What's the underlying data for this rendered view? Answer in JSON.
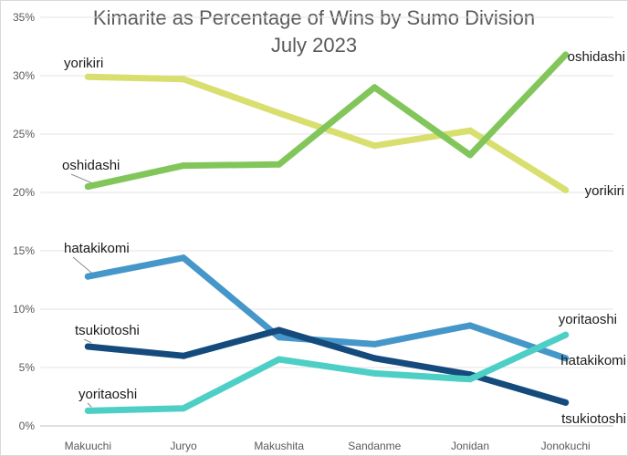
{
  "chart_data": {
    "type": "line",
    "title": "Kimarite as Percentage of Wins by Sumo Division",
    "subtitle": "July 2023",
    "xlabel": "",
    "ylabel": "",
    "categories": [
      "Makuuchi",
      "Juryo",
      "Makushita",
      "Sandanme",
      "Jonidan",
      "Jonokuchi"
    ],
    "ylim": [
      0,
      35
    ],
    "yticks": [
      0,
      5,
      10,
      15,
      20,
      25,
      30,
      35
    ],
    "ytick_labels": [
      "0%",
      "5%",
      "10%",
      "15%",
      "20%",
      "25%",
      "30%",
      "35%"
    ],
    "grid": true,
    "legend": "none",
    "series": [
      {
        "name": "yorikiri",
        "color": "#d9df6f",
        "values": [
          29.9,
          29.7,
          26.8,
          24.0,
          25.3,
          20.2
        ]
      },
      {
        "name": "oshidashi",
        "color": "#82c65b",
        "values": [
          20.5,
          22.3,
          22.4,
          29.0,
          23.2,
          31.8
        ]
      },
      {
        "name": "hatakikomi",
        "color": "#4596c9",
        "values": [
          12.8,
          14.4,
          7.6,
          7.0,
          8.6,
          5.8
        ]
      },
      {
        "name": "tsukiotoshi",
        "color": "#154b7c",
        "values": [
          6.8,
          6.0,
          8.2,
          5.8,
          4.4,
          2.0
        ]
      },
      {
        "name": "yoritaoshi",
        "color": "#4dcfc6",
        "values": [
          1.3,
          1.5,
          5.7,
          4.5,
          4.0,
          7.8
        ]
      }
    ]
  }
}
